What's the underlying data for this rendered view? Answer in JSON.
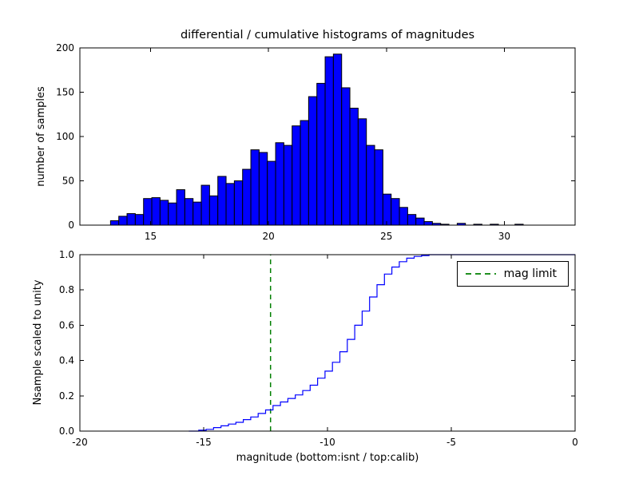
{
  "figure": {
    "background": "#ffffff"
  },
  "chart_data": [
    {
      "type": "bar",
      "role": "differential-histogram",
      "title": "differential / cumulative histograms of magnitudes",
      "ylabel": "number of samples",
      "xlim": [
        12,
        33
      ],
      "ylim": [
        0,
        200
      ],
      "xticks": [
        {
          "v": 15,
          "label": "15"
        },
        {
          "v": 20,
          "label": "20"
        },
        {
          "v": 25,
          "label": "25"
        },
        {
          "v": 30,
          "label": "30"
        }
      ],
      "yticks": [
        {
          "v": 0,
          "label": "0"
        },
        {
          "v": 50,
          "label": "50"
        },
        {
          "v": 100,
          "label": "100"
        },
        {
          "v": 150,
          "label": "150"
        },
        {
          "v": 200,
          "label": "200"
        }
      ],
      "bar_color": "#0000ff",
      "bar_edge_color": "#000000",
      "bin_start": 13.3,
      "bin_width": 0.35,
      "counts": [
        5,
        10,
        13,
        12,
        30,
        31,
        28,
        25,
        40,
        30,
        26,
        45,
        33,
        55,
        47,
        50,
        63,
        85,
        82,
        72,
        93,
        90,
        112,
        118,
        145,
        160,
        190,
        193,
        155,
        132,
        120,
        90,
        85,
        35,
        30,
        20,
        12,
        8,
        4,
        2,
        1,
        0,
        2,
        0,
        1,
        0,
        1,
        0,
        0,
        1
      ]
    },
    {
      "type": "line",
      "role": "cumulative-histogram",
      "ylabel": "Nsample scaled to unity",
      "xlabel": "magnitude (bottom:isnt / top:calib)",
      "xlim": [
        -20,
        0
      ],
      "ylim": [
        0.0,
        1.0
      ],
      "xticks": [
        {
          "v": -20,
          "label": "-20"
        },
        {
          "v": -15,
          "label": "-15"
        },
        {
          "v": -10,
          "label": "-10"
        },
        {
          "v": -5,
          "label": "-5"
        },
        {
          "v": 0,
          "label": "0"
        }
      ],
      "yticks": [
        {
          "v": 0.0,
          "label": "0.0"
        },
        {
          "v": 0.2,
          "label": "0.2"
        },
        {
          "v": 0.4,
          "label": "0.4"
        },
        {
          "v": 0.6,
          "label": "0.6"
        },
        {
          "v": 0.8,
          "label": "0.8"
        },
        {
          "v": 1.0,
          "label": "1.0"
        }
      ],
      "line_color": "#0000ff",
      "steps": [
        [
          -15.6,
          0.0
        ],
        [
          -15.2,
          0.005
        ],
        [
          -14.9,
          0.01
        ],
        [
          -14.6,
          0.02
        ],
        [
          -14.3,
          0.03
        ],
        [
          -14.0,
          0.04
        ],
        [
          -13.7,
          0.05
        ],
        [
          -13.4,
          0.065
        ],
        [
          -13.1,
          0.08
        ],
        [
          -12.8,
          0.1
        ],
        [
          -12.5,
          0.12
        ],
        [
          -12.2,
          0.145
        ],
        [
          -11.9,
          0.165
        ],
        [
          -11.6,
          0.185
        ],
        [
          -11.3,
          0.205
        ],
        [
          -11.0,
          0.23
        ],
        [
          -10.7,
          0.26
        ],
        [
          -10.4,
          0.3
        ],
        [
          -10.1,
          0.34
        ],
        [
          -9.8,
          0.39
        ],
        [
          -9.5,
          0.45
        ],
        [
          -9.2,
          0.52
        ],
        [
          -8.9,
          0.6
        ],
        [
          -8.6,
          0.68
        ],
        [
          -8.3,
          0.76
        ],
        [
          -8.0,
          0.83
        ],
        [
          -7.7,
          0.89
        ],
        [
          -7.4,
          0.93
        ],
        [
          -7.1,
          0.96
        ],
        [
          -6.8,
          0.98
        ],
        [
          -6.5,
          0.99
        ],
        [
          -6.2,
          0.995
        ],
        [
          -5.9,
          1.0
        ],
        [
          0,
          1.0
        ]
      ],
      "mag_limit": {
        "x": -12.3,
        "color": "#008000",
        "style": "dashed",
        "label": "mag limit"
      },
      "legend": {
        "position": "upper right"
      }
    }
  ]
}
